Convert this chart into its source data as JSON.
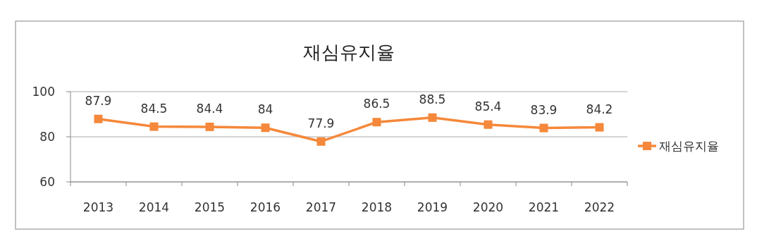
{
  "chart_data": {
    "type": "line",
    "title": "재심유지율",
    "categories": [
      "2013",
      "2014",
      "2015",
      "2016",
      "2017",
      "2018",
      "2019",
      "2020",
      "2021",
      "2022"
    ],
    "series": [
      {
        "name": "재심유지율",
        "color": "#f5883a",
        "values": [
          87.9,
          84.5,
          84.4,
          84,
          77.9,
          86.5,
          88.5,
          85.4,
          83.9,
          84.2
        ]
      }
    ],
    "ylim": [
      60,
      100
    ],
    "yticks": [
      60,
      80,
      100
    ],
    "grid": "y",
    "legend": "right",
    "marker": "square",
    "data_labels": true
  }
}
